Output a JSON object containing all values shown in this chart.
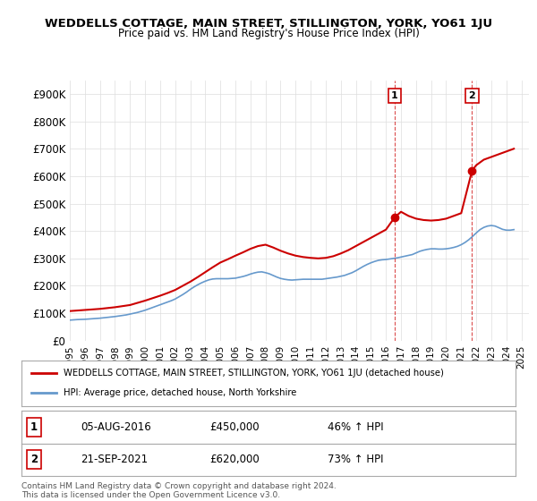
{
  "title": "WEDDELLS COTTAGE, MAIN STREET, STILLINGTON, YORK, YO61 1JU",
  "subtitle": "Price paid vs. HM Land Registry's House Price Index (HPI)",
  "ylabel_prefix": "£",
  "yticks": [
    0,
    100000,
    200000,
    300000,
    400000,
    500000,
    600000,
    700000,
    800000,
    900000
  ],
  "ytick_labels": [
    "£0",
    "£100K",
    "£200K",
    "£300K",
    "£400K",
    "£500K",
    "£600K",
    "£700K",
    "£800K",
    "£900K"
  ],
  "ylim": [
    0,
    950000
  ],
  "xlim_start": 1995.0,
  "xlim_end": 2025.5,
  "xticks": [
    1995,
    1996,
    1997,
    1998,
    1999,
    2000,
    2001,
    2002,
    2003,
    2004,
    2005,
    2006,
    2007,
    2008,
    2009,
    2010,
    2011,
    2012,
    2013,
    2014,
    2015,
    2016,
    2017,
    2018,
    2019,
    2020,
    2021,
    2022,
    2023,
    2024,
    2025
  ],
  "house_color": "#cc0000",
  "hpi_color": "#6699cc",
  "marker1_x": 2016.585,
  "marker1_y": 450000,
  "marker2_x": 2021.72,
  "marker2_y": 620000,
  "vline1_x": 2016.585,
  "vline2_x": 2021.72,
  "legend_house": "WEDDELLS COTTAGE, MAIN STREET, STILLINGTON, YORK, YO61 1JU (detached house)",
  "legend_hpi": "HPI: Average price, detached house, North Yorkshire",
  "annotation1_label": "1",
  "annotation1_date": "05-AUG-2016",
  "annotation1_price": "£450,000",
  "annotation1_hpi": "46% ↑ HPI",
  "annotation2_label": "2",
  "annotation2_date": "21-SEP-2021",
  "annotation2_price": "£620,000",
  "annotation2_hpi": "73% ↑ HPI",
  "footer": "Contains HM Land Registry data © Crown copyright and database right 2024.\nThis data is licensed under the Open Government Licence v3.0.",
  "background_color": "#ffffff",
  "grid_color": "#dddddd",
  "hpi_years": [
    1995.0,
    1995.25,
    1995.5,
    1995.75,
    1996.0,
    1996.25,
    1996.5,
    1996.75,
    1997.0,
    1997.25,
    1997.5,
    1997.75,
    1998.0,
    1998.25,
    1998.5,
    1998.75,
    1999.0,
    1999.25,
    1999.5,
    1999.75,
    2000.0,
    2000.25,
    2000.5,
    2000.75,
    2001.0,
    2001.25,
    2001.5,
    2001.75,
    2002.0,
    2002.25,
    2002.5,
    2002.75,
    2003.0,
    2003.25,
    2003.5,
    2003.75,
    2004.0,
    2004.25,
    2004.5,
    2004.75,
    2005.0,
    2005.25,
    2005.5,
    2005.75,
    2006.0,
    2006.25,
    2006.5,
    2006.75,
    2007.0,
    2007.25,
    2007.5,
    2007.75,
    2008.0,
    2008.25,
    2008.5,
    2008.75,
    2009.0,
    2009.25,
    2009.5,
    2009.75,
    2010.0,
    2010.25,
    2010.5,
    2010.75,
    2011.0,
    2011.25,
    2011.5,
    2011.75,
    2012.0,
    2012.25,
    2012.5,
    2012.75,
    2013.0,
    2013.25,
    2013.5,
    2013.75,
    2014.0,
    2014.25,
    2014.5,
    2014.75,
    2015.0,
    2015.25,
    2015.5,
    2015.75,
    2016.0,
    2016.25,
    2016.5,
    2016.75,
    2017.0,
    2017.25,
    2017.5,
    2017.75,
    2018.0,
    2018.25,
    2018.5,
    2018.75,
    2019.0,
    2019.25,
    2019.5,
    2019.75,
    2020.0,
    2020.25,
    2020.5,
    2020.75,
    2021.0,
    2021.25,
    2021.5,
    2021.75,
    2022.0,
    2022.25,
    2022.5,
    2022.75,
    2023.0,
    2023.25,
    2023.5,
    2023.75,
    2024.0,
    2024.25,
    2024.5
  ],
  "hpi_values": [
    75000,
    76000,
    77000,
    77500,
    78000,
    79000,
    80000,
    81000,
    82000,
    83500,
    85000,
    86500,
    88000,
    90000,
    92000,
    94000,
    97000,
    100000,
    103000,
    107000,
    111000,
    116000,
    121000,
    126000,
    131000,
    136000,
    141000,
    146000,
    152000,
    160000,
    168000,
    177000,
    187000,
    196000,
    204000,
    211000,
    217000,
    222000,
    225000,
    226000,
    226000,
    226000,
    226000,
    227000,
    228000,
    231000,
    234000,
    238000,
    243000,
    247000,
    250000,
    251000,
    248000,
    244000,
    238000,
    232000,
    227000,
    224000,
    222000,
    221000,
    222000,
    223000,
    224000,
    224000,
    224000,
    224000,
    224000,
    224000,
    226000,
    228000,
    230000,
    232000,
    235000,
    238000,
    243000,
    248000,
    255000,
    263000,
    271000,
    278000,
    284000,
    289000,
    293000,
    295000,
    296000,
    298000,
    300000,
    302000,
    305000,
    308000,
    311000,
    314000,
    320000,
    326000,
    330000,
    333000,
    335000,
    335000,
    334000,
    334000,
    335000,
    337000,
    340000,
    344000,
    350000,
    358000,
    368000,
    380000,
    393000,
    405000,
    413000,
    418000,
    420000,
    418000,
    412000,
    406000,
    403000,
    403000,
    405000
  ],
  "house_years": [
    1995.0,
    1995.5,
    1996.0,
    1996.5,
    1997.0,
    1997.5,
    1998.0,
    1998.5,
    1999.0,
    1999.5,
    2000.0,
    2000.5,
    2001.0,
    2001.5,
    2002.0,
    2002.5,
    2003.0,
    2003.5,
    2004.0,
    2004.5,
    2005.0,
    2005.5,
    2006.0,
    2006.5,
    2007.0,
    2007.5,
    2008.0,
    2008.5,
    2009.0,
    2009.5,
    2010.0,
    2010.5,
    2011.0,
    2011.5,
    2012.0,
    2012.5,
    2013.0,
    2013.5,
    2014.0,
    2014.5,
    2015.0,
    2015.5,
    2016.0,
    2016.585,
    2017.0,
    2017.5,
    2018.0,
    2018.5,
    2019.0,
    2019.5,
    2020.0,
    2020.5,
    2021.0,
    2021.72,
    2022.0,
    2022.5,
    2023.0,
    2023.5,
    2024.0,
    2024.5
  ],
  "house_values": [
    108000,
    110000,
    112000,
    114000,
    116000,
    119000,
    122000,
    126000,
    130000,
    138000,
    146000,
    155000,
    164000,
    174000,
    185000,
    200000,
    215000,
    232000,
    250000,
    268000,
    285000,
    297000,
    310000,
    322000,
    335000,
    345000,
    350000,
    340000,
    328000,
    318000,
    310000,
    305000,
    302000,
    300000,
    302000,
    308000,
    318000,
    330000,
    345000,
    360000,
    375000,
    390000,
    405000,
    450000,
    470000,
    455000,
    445000,
    440000,
    438000,
    440000,
    445000,
    455000,
    465000,
    620000,
    640000,
    660000,
    670000,
    680000,
    690000,
    700000
  ]
}
